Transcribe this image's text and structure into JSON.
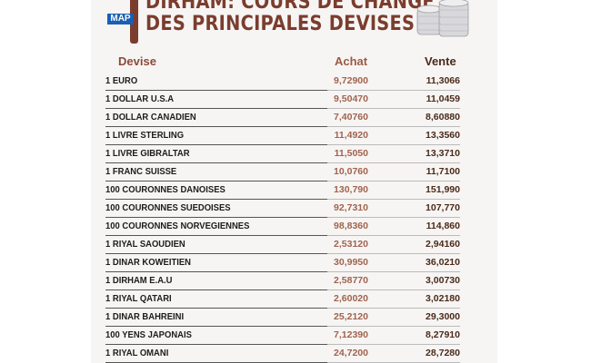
{
  "header": {
    "logo": "MAP",
    "title_line1": "DIRHAM: COURS DE CHANGE",
    "title_line2": "DES PRINCIPALES DEVISES"
  },
  "columns": {
    "devise": "Devise",
    "achat": "Achat",
    "vente": "Vente"
  },
  "rows": [
    {
      "devise": "1 EURO",
      "achat": "9,72900",
      "vente": "11,3066"
    },
    {
      "devise": "1 DOLLAR U.S.A",
      "achat": "9,50470",
      "vente": "11,0459"
    },
    {
      "devise": "1 DOLLAR CANADIEN",
      "achat": "7,40760",
      "vente": "8,60880"
    },
    {
      "devise": "1 LIVRE STERLING",
      "achat": "11,4920",
      "vente": "13,3560"
    },
    {
      "devise": "1 LIVRE GIBRALTAR",
      "achat": "11,5050",
      "vente": "13,3710"
    },
    {
      "devise": "1 FRANC SUISSE",
      "achat": "10,0760",
      "vente": "11,7100"
    },
    {
      "devise": "100 COURONNES DANOISES",
      "achat": "130,790",
      "vente": "151,990"
    },
    {
      "devise": "100 COURONNES SUEDOISES",
      "achat": "92,7310",
      "vente": "107,770"
    },
    {
      "devise": "100 COURONNES NORVEGIENNES",
      "achat": "98,8360",
      "vente": "114,860"
    },
    {
      "devise": "1 RIYAL SAOUDIEN",
      "achat": "2,53120",
      "vente": "2,94160"
    },
    {
      "devise": "1 DINAR KOWEITIEN",
      "achat": "30,9950",
      "vente": "36,0210"
    },
    {
      "devise": "1 DIRHAM E.A.U",
      "achat": "2,58770",
      "vente": "3,00730"
    },
    {
      "devise": "1 RIYAL QATARI",
      "achat": "2,60020",
      "vente": "3,02180"
    },
    {
      "devise": "1 DINAR BAHREINI",
      "achat": "25,2120",
      "vente": "29,3000"
    },
    {
      "devise": "100 YENS JAPONAIS",
      "achat": "7,12390",
      "vente": "8,27910"
    },
    {
      "devise": "1 RIYAL OMANI",
      "achat": "24,7200",
      "vente": "28,7280"
    }
  ]
}
